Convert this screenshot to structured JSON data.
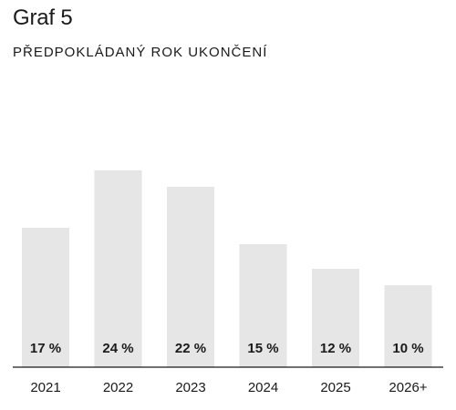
{
  "header": {
    "title": "Graf 5",
    "subtitle": "PŘEDPOKLÁDANÝ ROK UKONČENÍ"
  },
  "colors": {
    "bar": "#e6e6e6",
    "text": "#1a1a1a",
    "axis": "#1a1a1a"
  },
  "chart_data": {
    "type": "bar",
    "title": "Graf 5",
    "subtitle": "PŘEDPOKLÁDANÝ ROK UKONČENÍ",
    "categories": [
      "2021",
      "2022",
      "2023",
      "2024",
      "2025",
      "2026+"
    ],
    "values": [
      17,
      24,
      22,
      15,
      12,
      10
    ],
    "value_labels": [
      "17 %",
      "24 %",
      "22 %",
      "15 %",
      "12 %",
      "10 %"
    ],
    "unit": "%",
    "xlabel": "",
    "ylabel": "",
    "ylim": [
      0,
      27
    ],
    "grid": false,
    "legend": "none"
  }
}
